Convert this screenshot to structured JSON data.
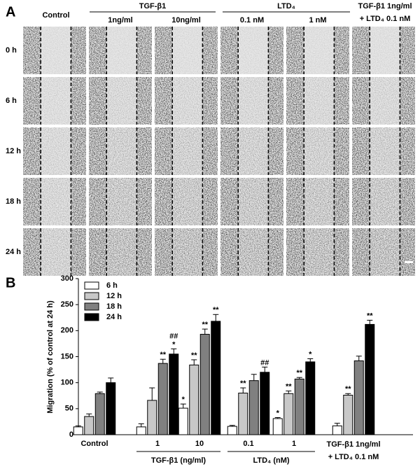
{
  "panel_a": {
    "label": "A",
    "control": "Control",
    "tgf": {
      "title": "TGF-β1",
      "columns": [
        "1ng/ml",
        "10ng/ml"
      ]
    },
    "ltd": {
      "title": "LTD₄",
      "columns": [
        "0.1 nM",
        "1 nM"
      ]
    },
    "combo": [
      "TGF-β1 1ng/ml",
      "+ LTD₄ 0.1 nM"
    ],
    "rows": [
      "0 h",
      "6 h",
      "12 h",
      "18 h",
      "24 h"
    ]
  },
  "chart_data": {
    "type": "bar",
    "label": "B",
    "y_label": "Migration (% of control at 24 h)",
    "categories": [
      "Control",
      "1",
      "10",
      "0.1",
      "1",
      "TGF-β1 1ng/ml\n+ LTD₄ 0.1 nM"
    ],
    "group_labels": [
      "TGF-β1 (ng/ml)",
      "LTD₄ (nM)"
    ],
    "ylim": [
      0,
      300
    ],
    "yticks": [
      0,
      50,
      100,
      150,
      200,
      250,
      300
    ],
    "series": [
      {
        "name": "6 h",
        "color": "#ffffff",
        "values": [
          15,
          15,
          51,
          16,
          31,
          17
        ],
        "errors": [
          2,
          6,
          8,
          2,
          2,
          5
        ],
        "significance": [
          [],
          [],
          [
            "*"
          ],
          [],
          [
            "*"
          ],
          []
        ]
      },
      {
        "name": "12 h",
        "color": "#c8c8c8",
        "values": [
          35,
          66,
          134,
          80,
          79,
          76
        ],
        "errors": [
          5,
          24,
          10,
          10,
          5,
          3
        ],
        "significance": [
          [],
          [],
          [
            "**"
          ],
          [
            "**"
          ],
          [
            "**"
          ],
          [
            "**"
          ]
        ]
      },
      {
        "name": "18 h",
        "color": "#808080",
        "values": [
          79,
          137,
          193,
          104,
          107,
          142
        ],
        "errors": [
          3,
          8,
          10,
          12,
          3,
          9
        ],
        "significance": [
          [],
          [
            "**"
          ],
          [
            "**"
          ],
          [],
          [
            "**"
          ],
          []
        ]
      },
      {
        "name": "24 h",
        "color": "#000000",
        "values": [
          100,
          155,
          218,
          120,
          140,
          212
        ],
        "errors": [
          9,
          10,
          13,
          10,
          6,
          8
        ],
        "significance": [
          [],
          [
            "*",
            "##"
          ],
          [
            "**"
          ],
          [
            "##"
          ],
          [
            "*"
          ],
          [
            "**"
          ]
        ]
      }
    ]
  }
}
